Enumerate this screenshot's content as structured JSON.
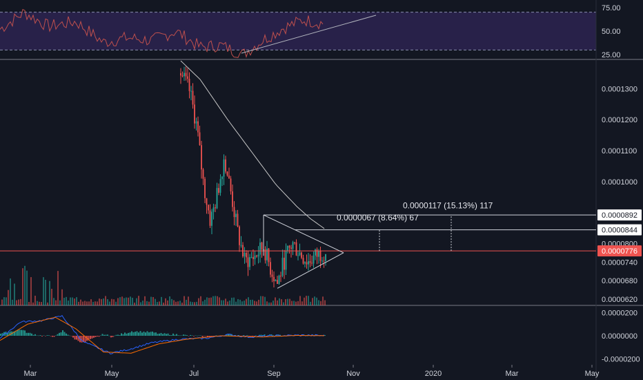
{
  "chart_data": {
    "type": "candlestick",
    "colors": {
      "background": "#131722",
      "up": "#26a69a",
      "down": "#ef5350",
      "rsi_line": "#c0504d",
      "rsi_band": "#3a2a6a",
      "ma": "#c8c8c8",
      "macd": "#2962ff",
      "signal": "#ff6d00",
      "last_price_tag": "#ef5350"
    },
    "x_axis": {
      "labels": [
        "Mar",
        "May",
        "Jul",
        "Sep",
        "Nov",
        "2020",
        "Mar",
        "May"
      ]
    },
    "rsi": {
      "ticks": [
        "75.00",
        "50.00",
        "25.00"
      ],
      "upper_band": 70,
      "lower_band": 30,
      "ylim": [
        20,
        80
      ]
    },
    "price": {
      "ticks": [
        "0.0001300",
        "0.0001200",
        "0.0001100",
        "0.0001000",
        "0.0000800",
        "0.0000740",
        "0.0000680",
        "0.0000620"
      ],
      "tag_values": [
        "0.0000892",
        "0.0000844"
      ],
      "last_price": "0.0000776",
      "ylim": [
        6e-05,
        0.000139
      ]
    },
    "macd": {
      "ticks": [
        "0.0000200",
        "0.0000000",
        "-0.0000200"
      ],
      "ylim": [
        -2.5e-05,
        2.5e-05
      ]
    },
    "annotations": [
      {
        "text": "0.0000067 (8.64%) 67",
        "from": 7.76e-05,
        "to": 8.44e-05
      },
      {
        "text": "0.0000117 (15.13%) 117",
        "from": 7.76e-05,
        "to": 8.92e-05
      }
    ]
  }
}
